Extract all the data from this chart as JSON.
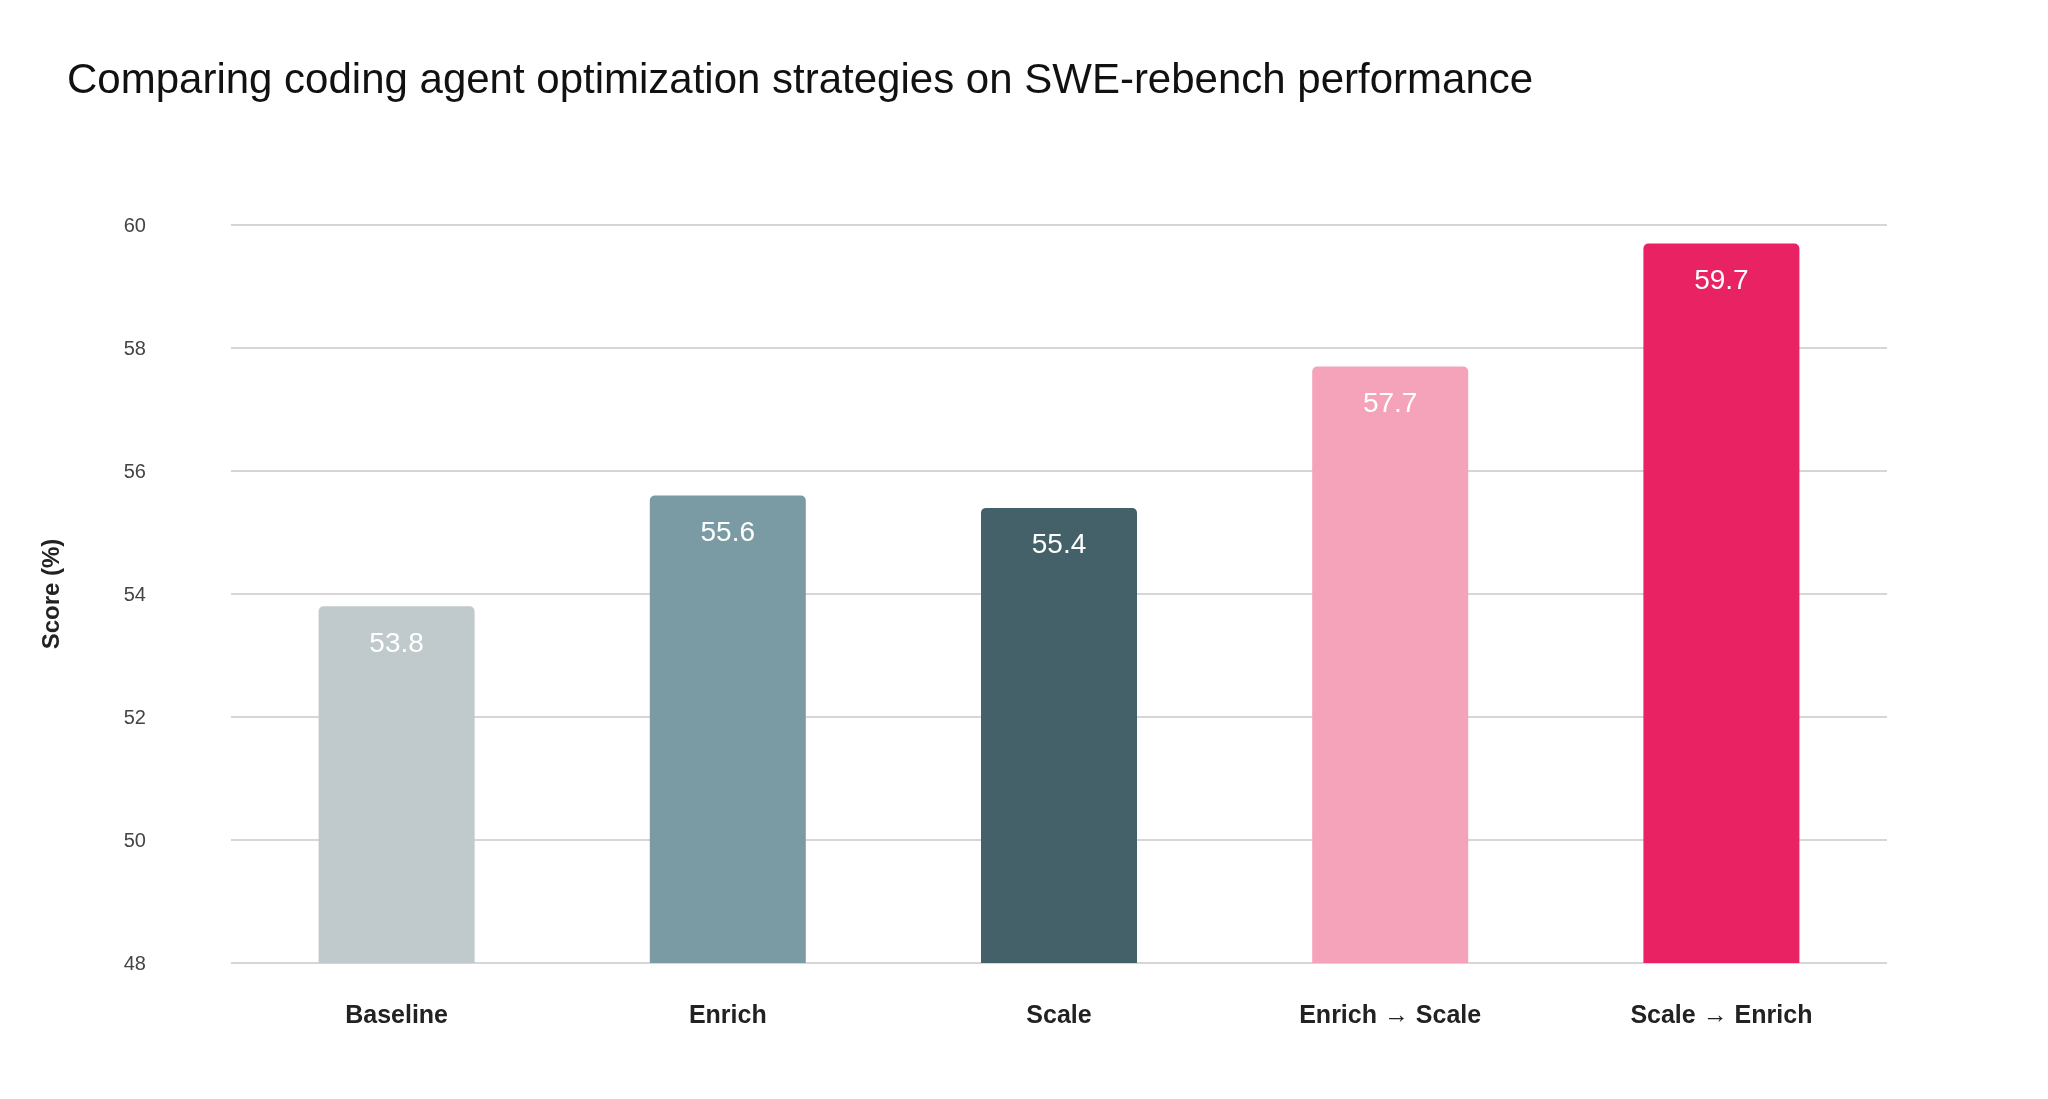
{
  "chart_data": {
    "type": "bar",
    "title": "Comparing coding agent optimization strategies on SWE-rebench performance",
    "ylabel": "Score (%)",
    "categories": [
      "Baseline",
      "Enrich",
      "Scale",
      "Enrich → Scale",
      "Scale → Enrich"
    ],
    "values": [
      53.8,
      55.6,
      55.4,
      57.7,
      59.7
    ],
    "colors": [
      "#c0c9cb",
      "#7a9ba3",
      "#44616a",
      "#f4a3bb",
      "#e82263"
    ],
    "ylim": [
      48,
      60
    ],
    "yticks": [
      48,
      50,
      52,
      54,
      56,
      58,
      60
    ],
    "grid": "y",
    "data_labels": true
  }
}
